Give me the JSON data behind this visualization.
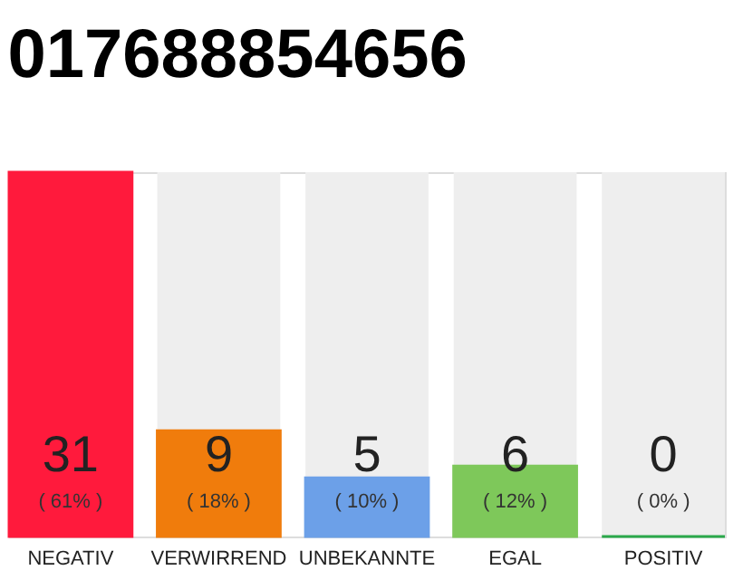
{
  "chart_data": {
    "type": "bar",
    "title": "017688854656",
    "categories": [
      "NEGATIV",
      "VERWIRREND",
      "UNBEKANNTE",
      "EGAL",
      "POSITIV"
    ],
    "values": [
      31,
      9,
      5,
      6,
      0
    ],
    "colors": [
      "#ff1a3c",
      "#f07c0c",
      "#6ca0e8",
      "#7ec85a",
      "#2aa84a"
    ],
    "ylim": [
      0,
      31
    ],
    "data_labels": true,
    "tick_labels": "x",
    "grid": false,
    "annotations": [
      "( 61% )",
      "( 18% )",
      "( 10% )",
      "( 12% )",
      "( 0% )"
    ]
  }
}
